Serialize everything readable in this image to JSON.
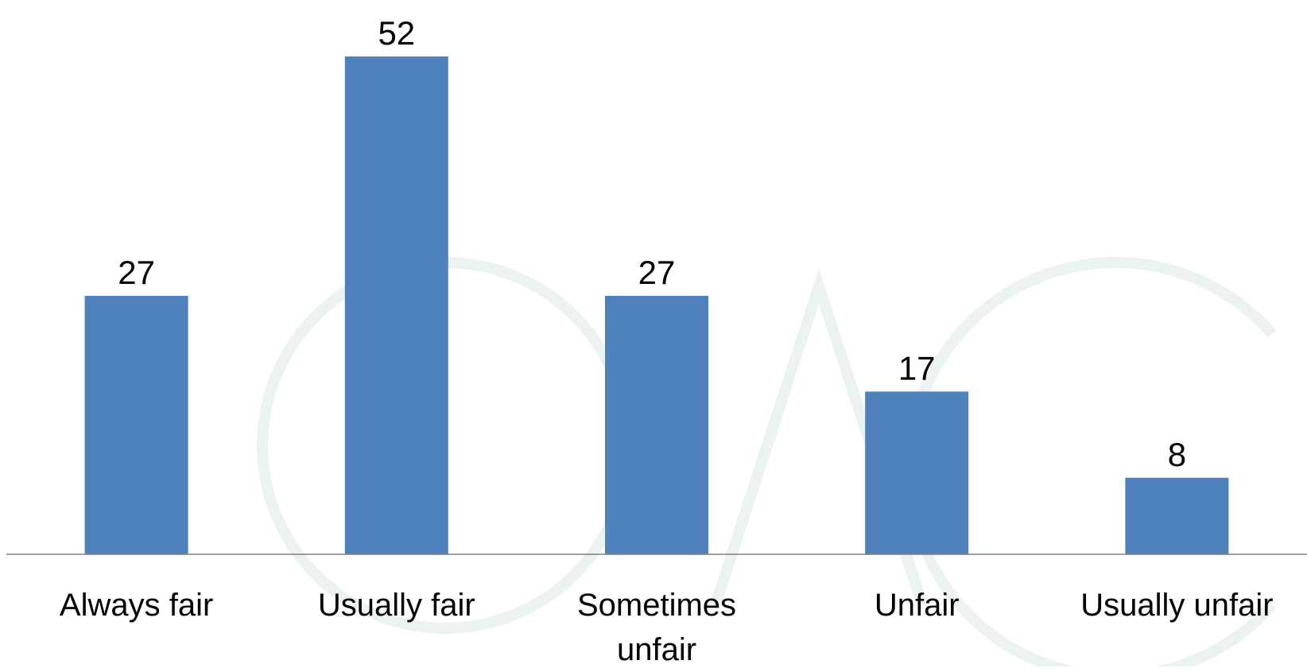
{
  "chart_data": {
    "type": "bar",
    "categories": [
      "Always fair",
      "Usually fair",
      "Sometimes unfair",
      "Unfair",
      "Usually unfair"
    ],
    "values": [
      27,
      52,
      27,
      17,
      8
    ],
    "color": "#4f81bd"
  }
}
